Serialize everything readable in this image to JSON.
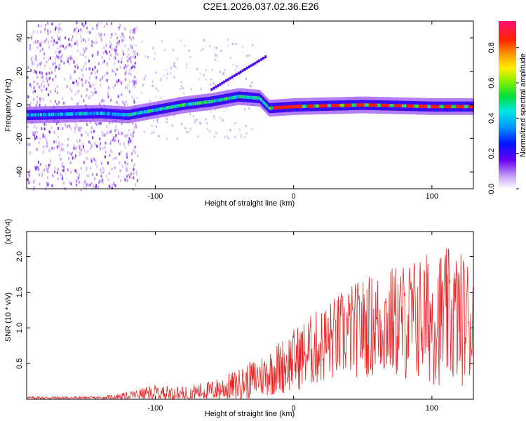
{
  "title": "C2E1.2026.037.02.36.E26",
  "chart_data": [
    {
      "type": "heatmap",
      "xlabel": "Height of straight line (km)",
      "ylabel": "Frequency (Hz)",
      "xlim": [
        -193,
        130
      ],
      "ylim": [
        -50,
        50
      ],
      "xticks": [
        -100,
        0,
        100
      ],
      "yticks": [
        -40,
        -20,
        0,
        20,
        40
      ],
      "colorbar": {
        "label": "Normalized spectral amplitude",
        "range": [
          0,
          0.95
        ],
        "ticks": [
          "0.0",
          "0.2",
          "0.4",
          "0.6",
          "0.8"
        ],
        "tick_values": [
          0,
          0.2,
          0.4,
          0.6,
          0.8
        ]
      },
      "ridge": [
        {
          "x": -190,
          "f": -6
        },
        {
          "x": -140,
          "f": -5
        },
        {
          "x": -120,
          "f": -6
        },
        {
          "x": -100,
          "f": -3
        },
        {
          "x": -80,
          "f": 0
        },
        {
          "x": -60,
          "f": 2
        },
        {
          "x": -40,
          "f": 5
        },
        {
          "x": -25,
          "f": 4
        },
        {
          "x": -18,
          "f": -2
        },
        {
          "x": 0,
          "f": -1
        },
        {
          "x": 50,
          "f": 0
        },
        {
          "x": 100,
          "f": -1
        },
        {
          "x": 130,
          "f": -1
        }
      ],
      "annotation": "Intense carrier at about 0 Hz from -15 km to 130 km; scattered noise at heights below -130 km"
    },
    {
      "type": "line",
      "xlabel": "Height of straight line (km)",
      "ylabel": "SNR (10 * v/v)",
      "y_multiplier": "(x10^4)",
      "xlim": [
        -193,
        130
      ],
      "ylim": [
        0,
        2.35
      ],
      "xticks": [
        -100,
        0,
        100
      ],
      "yticks": [
        0.5,
        1.0,
        1.5,
        2.0
      ],
      "ytick_labels": [
        "0.5",
        "1.0",
        "1.5",
        "2.0"
      ],
      "series": [
        {
          "name": "SNR",
          "color": "#ee2222",
          "envelope": [
            {
              "x": -193,
              "mean": 0.02,
              "amp": 0.02
            },
            {
              "x": -140,
              "mean": 0.02,
              "amp": 0.02
            },
            {
              "x": -120,
              "mean": 0.05,
              "amp": 0.05
            },
            {
              "x": -100,
              "mean": 0.09,
              "amp": 0.12
            },
            {
              "x": -80,
              "mean": 0.08,
              "amp": 0.1
            },
            {
              "x": -60,
              "mean": 0.12,
              "amp": 0.14
            },
            {
              "x": -40,
              "mean": 0.2,
              "amp": 0.22
            },
            {
              "x": -20,
              "mean": 0.35,
              "amp": 0.32
            },
            {
              "x": 0,
              "mean": 0.55,
              "amp": 0.45
            },
            {
              "x": 20,
              "mean": 0.75,
              "amp": 0.55
            },
            {
              "x": 40,
              "mean": 0.95,
              "amp": 0.65
            },
            {
              "x": 60,
              "mean": 1.05,
              "amp": 0.75
            },
            {
              "x": 80,
              "mean": 1.1,
              "amp": 0.85
            },
            {
              "x": 100,
              "mean": 1.15,
              "amp": 0.95
            },
            {
              "x": 115,
              "mean": 1.15,
              "amp": 0.98
            },
            {
              "x": 130,
              "mean": 1.1,
              "amp": 0.9
            }
          ]
        }
      ]
    }
  ]
}
